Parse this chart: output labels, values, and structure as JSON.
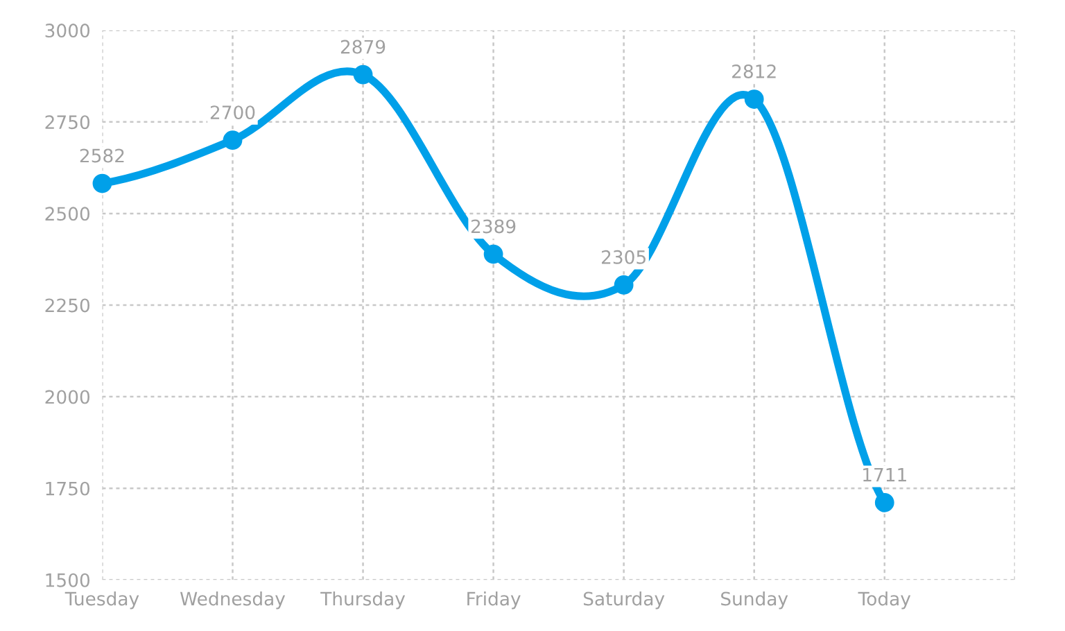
{
  "chart_data": {
    "type": "line",
    "categories": [
      "Tuesday",
      "Wednesday",
      "Thursday",
      "Friday",
      "Saturday",
      "Sunday",
      "Today"
    ],
    "series": [
      {
        "color": "#00a0e9",
        "values": [
          2582,
          2700,
          2879,
          2389,
          2305,
          2812,
          1711
        ]
      }
    ],
    "ylim": [
      1500,
      3000
    ],
    "yticks": [
      1500,
      1750,
      2000,
      2250,
      2500,
      2750,
      3000
    ],
    "grid": true,
    "marker": "circle",
    "line_style": "solid",
    "data_labels": true
  }
}
